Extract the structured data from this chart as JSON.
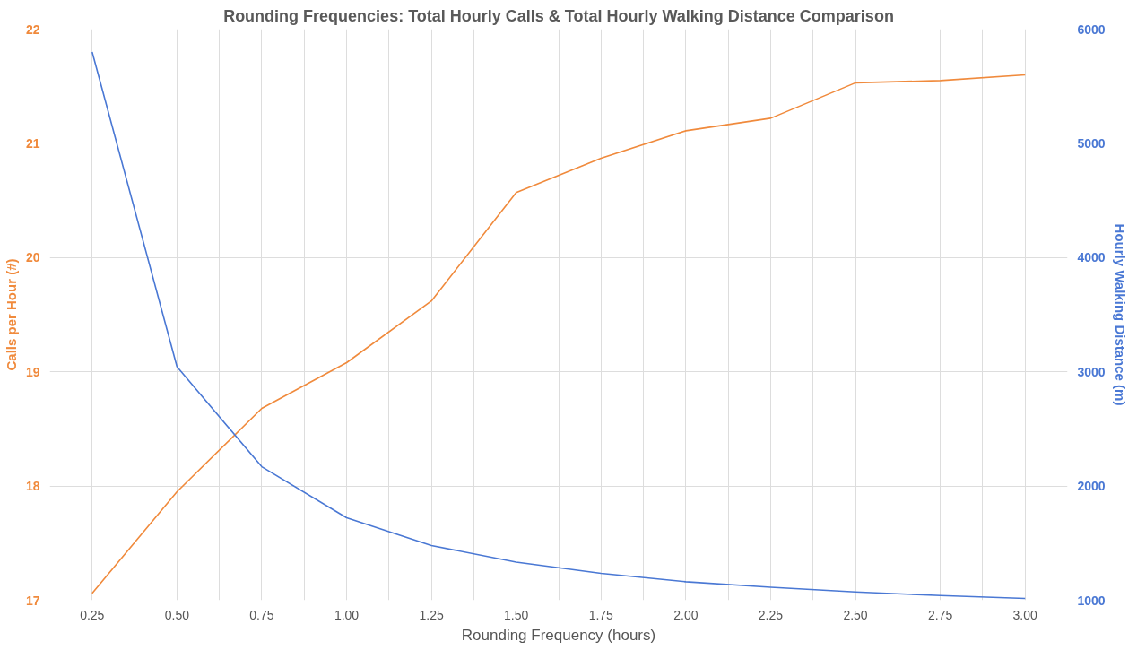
{
  "chart_data": {
    "type": "line",
    "title": "Rounding Frequencies: Total Hourly Calls & Total Hourly Walking Distance Comparison",
    "xlabel": "Rounding Frequency (hours)",
    "ylabel": "Calls per Hour (#)",
    "y2label": "Hourly Walking Distance (m)",
    "x": [
      0.25,
      0.5,
      0.75,
      1.0,
      1.25,
      1.5,
      1.75,
      2.0,
      2.25,
      2.5,
      2.75,
      3.0
    ],
    "series": [
      {
        "color": "#f08a3c",
        "values": [
          17.06,
          17.95,
          18.68,
          19.08,
          19.62,
          20.57,
          20.87,
          21.11,
          21.22,
          21.53,
          21.55,
          21.6
        ]
      },
      {
        "color": "#4a78d4",
        "axis": "y2",
        "values": [
          5800,
          3045,
          2169,
          1722,
          1479,
          1333,
          1235,
          1162,
          1114,
          1073,
          1041,
          1016
        ]
      }
    ],
    "xlim": [
      0.125,
      3.125
    ],
    "xticks": [
      {
        "value": 0.25,
        "label": "0.25"
      },
      {
        "value": 0.375,
        "label": null
      },
      {
        "value": 0.5,
        "label": "0.50"
      },
      {
        "value": 0.625,
        "label": null
      },
      {
        "value": 0.75,
        "label": "0.75"
      },
      {
        "value": 0.875,
        "label": null
      },
      {
        "value": 1.0,
        "label": "1.00"
      },
      {
        "value": 1.125,
        "label": null
      },
      {
        "value": 1.25,
        "label": "1.25"
      },
      {
        "value": 1.375,
        "label": null
      },
      {
        "value": 1.5,
        "label": "1.50"
      },
      {
        "value": 1.625,
        "label": null
      },
      {
        "value": 1.75,
        "label": "1.75"
      },
      {
        "value": 1.875,
        "label": null
      },
      {
        "value": 2.0,
        "label": "2.00"
      },
      {
        "value": 2.125,
        "label": null
      },
      {
        "value": 2.25,
        "label": "2.25"
      },
      {
        "value": 2.375,
        "label": null
      },
      {
        "value": 2.5,
        "label": "2.50"
      },
      {
        "value": 2.625,
        "label": null
      },
      {
        "value": 2.75,
        "label": "2.75"
      },
      {
        "value": 2.875,
        "label": null
      },
      {
        "value": 3.0,
        "label": "3.00"
      }
    ],
    "ylim": [
      17,
      22
    ],
    "yticks": [
      17,
      18,
      19,
      20,
      21,
      22
    ],
    "y2lim": [
      1000,
      6000
    ],
    "y2ticks": [
      1000,
      2000,
      3000,
      4000,
      5000,
      6000
    ],
    "grid": true
  }
}
